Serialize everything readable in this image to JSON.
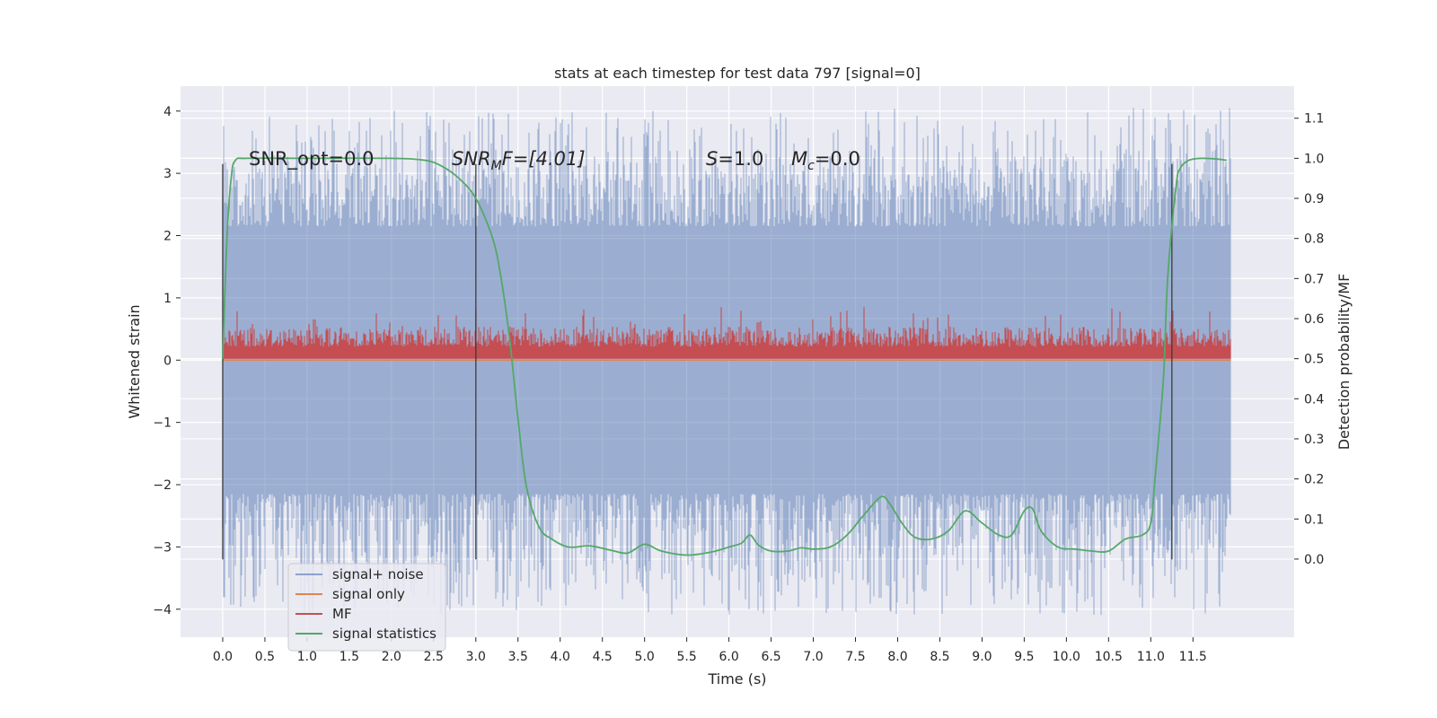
{
  "chart_data": {
    "type": "line",
    "title": "stats at each timestep for test data 797 [signal=0]",
    "xlabel": "Time (s)",
    "ylabel": "Whitened strain",
    "y2label": "Detection probability/MF",
    "xlim": [
      -0.5,
      12.7
    ],
    "ylim": [
      -4.45,
      4.4
    ],
    "y2lim": [
      -0.195,
      1.18
    ],
    "x_ticks": [
      "0.0",
      "0.5",
      "1.0",
      "1.5",
      "2.0",
      "2.5",
      "3.0",
      "3.5",
      "4.0",
      "4.5",
      "5.0",
      "5.5",
      "6.0",
      "6.5",
      "7.0",
      "7.5",
      "8.0",
      "8.5",
      "9.0",
      "9.5",
      "10.0",
      "10.5",
      "11.0",
      "11.5"
    ],
    "y_ticks": [
      "4",
      "3",
      "2",
      "1",
      "0",
      "−1",
      "−2",
      "−3",
      "−4"
    ],
    "y2_ticks": [
      "1.1",
      "1.0",
      "0.9",
      "0.8",
      "0.7",
      "0.6",
      "0.5",
      "0.4",
      "0.3",
      "0.2",
      "0.1",
      "0.0"
    ],
    "grid": true,
    "legend_position": "lower-left",
    "annotations": {
      "snr_opt": "SNR_opt=0.0",
      "snr_mf_symbol": "SNR",
      "snr_mf_sub": "M",
      "snr_mf_rest": "F=[4.01]",
      "s_symbol": "S",
      "s_rest": "=1.0",
      "mc_symbol": "M",
      "mc_sub": "c",
      "mc_rest": "=0.0"
    },
    "event_lines_x": [
      0.0,
      3.0,
      11.25
    ],
    "event_lines_yrange": [
      -3.2,
      3.15
    ],
    "series": [
      {
        "name": "signal+ noise",
        "color": "#4c72b0",
        "axis": "left",
        "style": "dense noise",
        "x_range": [
          0.0,
          11.95
        ],
        "inner_range": [
          -2.0,
          2.0
        ],
        "outer_extremes": [
          -4.1,
          4.05
        ]
      },
      {
        "name": "signal only",
        "color": "#dd8452",
        "axis": "left",
        "x": [
          0.0,
          11.95
        ],
        "y": [
          0.0,
          0.0
        ]
      },
      {
        "name": "MF",
        "color": "#c44e52",
        "axis": "right",
        "style": "dense noise",
        "x_range": [
          0.0,
          11.95
        ],
        "baseline": 0.5,
        "typical_max": 0.58,
        "spike_max": 0.63
      },
      {
        "name": "signal statistics",
        "color": "#55a868",
        "axis": "right",
        "x": [
          0.0,
          0.05,
          0.1,
          0.15,
          0.3,
          1.0,
          2.0,
          2.4,
          2.6,
          2.8,
          3.0,
          3.2,
          3.3,
          3.4,
          3.5,
          3.6,
          3.75,
          3.9,
          4.1,
          4.35,
          4.6,
          4.8,
          5.0,
          5.2,
          5.5,
          5.8,
          6.0,
          6.15,
          6.25,
          6.35,
          6.5,
          6.7,
          6.85,
          7.0,
          7.2,
          7.4,
          7.6,
          7.8,
          7.9,
          8.05,
          8.2,
          8.4,
          8.6,
          8.8,
          9.0,
          9.2,
          9.35,
          9.5,
          9.6,
          9.7,
          9.9,
          10.1,
          10.3,
          10.5,
          10.7,
          10.9,
          11.0,
          11.05,
          11.15,
          11.2,
          11.3,
          11.35,
          11.45,
          11.6,
          11.8,
          11.9
        ],
        "y": [
          0.5,
          0.8,
          0.95,
          0.995,
          1.0,
          1.0,
          1.0,
          0.995,
          0.98,
          0.95,
          0.9,
          0.8,
          0.7,
          0.55,
          0.35,
          0.18,
          0.08,
          0.05,
          0.03,
          0.033,
          0.022,
          0.015,
          0.037,
          0.02,
          0.01,
          0.018,
          0.03,
          0.04,
          0.06,
          0.035,
          0.02,
          0.02,
          0.028,
          0.025,
          0.03,
          0.06,
          0.11,
          0.155,
          0.14,
          0.09,
          0.055,
          0.05,
          0.07,
          0.12,
          0.09,
          0.06,
          0.06,
          0.12,
          0.125,
          0.07,
          0.03,
          0.025,
          0.02,
          0.02,
          0.05,
          0.06,
          0.09,
          0.2,
          0.45,
          0.7,
          0.93,
          0.975,
          0.995,
          1.0,
          0.998,
          0.995
        ]
      }
    ]
  }
}
